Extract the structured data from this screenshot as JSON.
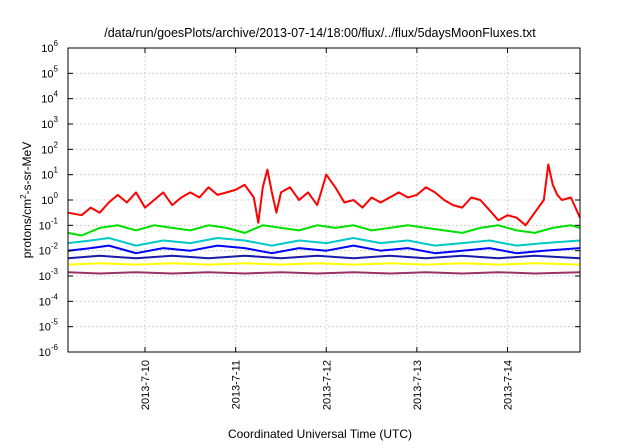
{
  "chart_data": {
    "type": "line",
    "title": "/data/run/goesPlots/archive/2013-07-14/18:00/flux/../flux/5daysMoonFluxes.txt",
    "xlabel": "Coordinated Universal Time (UTC)",
    "ylabel": "protons/cm2-s-sr-MeV",
    "ylabel_base": "protons/cm",
    "ylabel_sup": "2",
    "ylabel_tail": "-s-sr-MeV",
    "y_scale": "log",
    "ylim_exp": [
      -6,
      6
    ],
    "y_ticks": [
      {
        "base": "10",
        "exp": "-6",
        "value": -6
      },
      {
        "base": "10",
        "exp": "-5",
        "value": -5
      },
      {
        "base": "10",
        "exp": "-4",
        "value": -4
      },
      {
        "base": "10",
        "exp": "-3",
        "value": -3
      },
      {
        "base": "10",
        "exp": "-2",
        "value": -2
      },
      {
        "base": "10",
        "exp": "-1",
        "value": -1
      },
      {
        "base": "10",
        "exp": "0",
        "value": 0
      },
      {
        "base": "10",
        "exp": "1",
        "value": 1
      },
      {
        "base": "10",
        "exp": "2",
        "value": 2
      },
      {
        "base": "10",
        "exp": "3",
        "value": 3
      },
      {
        "base": "10",
        "exp": "4",
        "value": 4
      },
      {
        "base": "10",
        "exp": "5",
        "value": 5
      },
      {
        "base": "10",
        "exp": "6",
        "value": 6
      }
    ],
    "x_range_days": [
      9.15,
      14.8
    ],
    "x_ticks": [
      {
        "label": "2013-7-10",
        "value": 10
      },
      {
        "label": "2013-7-11",
        "value": 11
      },
      {
        "label": "2013-7-12",
        "value": 12
      },
      {
        "label": "2013-7-13",
        "value": 13
      },
      {
        "label": "2013-7-14",
        "value": 14
      }
    ],
    "grid": true,
    "legend": "none",
    "series": [
      {
        "color": "#ff0000",
        "x": [
          9.15,
          9.3,
          9.4,
          9.5,
          9.6,
          9.7,
          9.8,
          9.9,
          10.0,
          10.1,
          10.2,
          10.3,
          10.4,
          10.5,
          10.6,
          10.7,
          10.8,
          10.9,
          11.0,
          11.1,
          11.2,
          11.25,
          11.3,
          11.35,
          11.4,
          11.45,
          11.5,
          11.6,
          11.7,
          11.8,
          11.9,
          12.0,
          12.1,
          12.2,
          12.3,
          12.4,
          12.5,
          12.6,
          12.7,
          12.8,
          12.9,
          13.0,
          13.1,
          13.2,
          13.3,
          13.4,
          13.5,
          13.6,
          13.7,
          13.8,
          13.9,
          14.0,
          14.1,
          14.2,
          14.3,
          14.4,
          14.45,
          14.5,
          14.55,
          14.6,
          14.7,
          14.8
        ],
        "y": [
          -0.5,
          -0.6,
          -0.3,
          -0.5,
          -0.1,
          0.2,
          -0.1,
          0.3,
          -0.3,
          0.0,
          0.3,
          -0.2,
          0.1,
          0.3,
          0.1,
          0.5,
          0.2,
          0.3,
          0.4,
          0.6,
          0.1,
          -0.9,
          0.5,
          1.2,
          0.3,
          -0.5,
          0.3,
          0.5,
          0.0,
          0.3,
          -0.2,
          1.0,
          0.5,
          -0.1,
          0.0,
          -0.3,
          0.1,
          -0.1,
          0.1,
          0.3,
          0.1,
          0.2,
          0.5,
          0.3,
          0.0,
          -0.2,
          -0.3,
          0.1,
          0.0,
          -0.4,
          -0.8,
          -0.6,
          -0.7,
          -1.0,
          -0.5,
          0.0,
          1.4,
          0.6,
          0.2,
          0.0,
          0.1,
          -0.7
        ]
      },
      {
        "color": "#00e000",
        "x": [
          9.15,
          9.3,
          9.5,
          9.7,
          9.9,
          10.1,
          10.3,
          10.5,
          10.7,
          10.9,
          11.1,
          11.3,
          11.5,
          11.7,
          11.9,
          12.1,
          12.3,
          12.5,
          12.7,
          12.9,
          13.1,
          13.3,
          13.5,
          13.7,
          13.9,
          14.1,
          14.3,
          14.5,
          14.7,
          14.8
        ],
        "y": [
          -1.3,
          -1.4,
          -1.1,
          -1.0,
          -1.2,
          -1.0,
          -1.1,
          -1.2,
          -1.0,
          -1.1,
          -1.3,
          -1.0,
          -1.1,
          -1.2,
          -1.0,
          -1.1,
          -1.0,
          -1.2,
          -1.1,
          -1.0,
          -1.1,
          -1.2,
          -1.3,
          -1.1,
          -1.0,
          -1.2,
          -1.3,
          -1.1,
          -1.0,
          -1.1
        ]
      },
      {
        "color": "#00c8c8",
        "x": [
          9.15,
          9.4,
          9.6,
          9.9,
          10.2,
          10.5,
          10.8,
          11.1,
          11.4,
          11.7,
          12.0,
          12.3,
          12.6,
          12.9,
          13.2,
          13.5,
          13.8,
          14.1,
          14.4,
          14.8
        ],
        "y": [
          -1.7,
          -1.6,
          -1.5,
          -1.8,
          -1.6,
          -1.7,
          -1.5,
          -1.6,
          -1.8,
          -1.6,
          -1.7,
          -1.5,
          -1.7,
          -1.6,
          -1.8,
          -1.7,
          -1.6,
          -1.8,
          -1.7,
          -1.6
        ]
      },
      {
        "color": "#0000ff",
        "x": [
          9.15,
          9.4,
          9.6,
          9.9,
          10.2,
          10.5,
          10.8,
          11.1,
          11.4,
          11.7,
          12.0,
          12.3,
          12.6,
          12.9,
          13.2,
          13.5,
          13.8,
          14.1,
          14.4,
          14.8
        ],
        "y": [
          -2.0,
          -1.9,
          -1.8,
          -2.1,
          -1.9,
          -2.0,
          -1.8,
          -1.9,
          -2.1,
          -1.9,
          -2.0,
          -1.8,
          -2.0,
          -1.9,
          -2.1,
          -2.0,
          -1.9,
          -2.1,
          -2.0,
          -1.9
        ]
      },
      {
        "color": "#1a1aa8",
        "x": [
          9.15,
          9.5,
          9.9,
          10.3,
          10.7,
          11.1,
          11.5,
          11.9,
          12.3,
          12.7,
          13.1,
          13.5,
          13.9,
          14.3,
          14.8
        ],
        "y": [
          -2.3,
          -2.2,
          -2.3,
          -2.2,
          -2.3,
          -2.2,
          -2.3,
          -2.2,
          -2.3,
          -2.2,
          -2.3,
          -2.2,
          -2.3,
          -2.2,
          -2.3
        ]
      },
      {
        "color": "#ffff00",
        "x": [
          9.15,
          9.5,
          9.9,
          10.3,
          10.7,
          11.1,
          11.5,
          11.9,
          12.3,
          12.7,
          13.1,
          13.5,
          13.9,
          14.3,
          14.8
        ],
        "y": [
          -2.55,
          -2.5,
          -2.55,
          -2.5,
          -2.55,
          -2.5,
          -2.55,
          -2.5,
          -2.55,
          -2.5,
          -2.55,
          -2.5,
          -2.55,
          -2.5,
          -2.55
        ]
      },
      {
        "color": "#993366",
        "x": [
          9.15,
          9.5,
          9.9,
          10.3,
          10.7,
          11.1,
          11.5,
          11.9,
          12.3,
          12.7,
          13.1,
          13.5,
          13.9,
          14.3,
          14.8
        ],
        "y": [
          -2.85,
          -2.9,
          -2.85,
          -2.9,
          -2.85,
          -2.9,
          -2.85,
          -2.9,
          -2.85,
          -2.9,
          -2.85,
          -2.9,
          -2.85,
          -2.9,
          -2.85
        ]
      }
    ]
  }
}
